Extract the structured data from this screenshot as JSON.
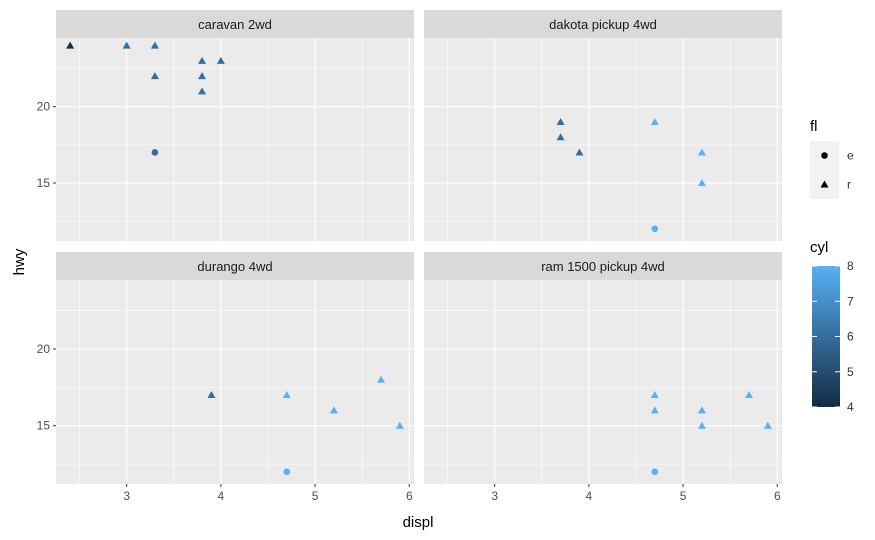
{
  "chart_data": {
    "type": "scatter",
    "xlabel": "displ",
    "ylabel": "hwy",
    "xlim": [
      2.25,
      6.05
    ],
    "ylim": [
      11.2,
      24.5
    ],
    "x_ticks": [
      3,
      4,
      5,
      6
    ],
    "y_ticks": [
      15,
      20
    ],
    "grid": true,
    "facets": [
      {
        "label": "caravan 2wd",
        "points": [
          {
            "x": 2.4,
            "y": 24,
            "fl": "r",
            "cyl": 4
          },
          {
            "x": 3.0,
            "y": 24,
            "fl": "r",
            "cyl": 6
          },
          {
            "x": 3.3,
            "y": 24,
            "fl": "r",
            "cyl": 6
          },
          {
            "x": 3.3,
            "y": 22,
            "fl": "r",
            "cyl": 6
          },
          {
            "x": 3.3,
            "y": 17,
            "fl": "e",
            "cyl": 6
          },
          {
            "x": 3.8,
            "y": 23,
            "fl": "r",
            "cyl": 6
          },
          {
            "x": 3.8,
            "y": 22,
            "fl": "r",
            "cyl": 6
          },
          {
            "x": 3.8,
            "y": 21,
            "fl": "r",
            "cyl": 6
          },
          {
            "x": 4.0,
            "y": 23,
            "fl": "r",
            "cyl": 6
          }
        ]
      },
      {
        "label": "dakota pickup 4wd",
        "points": [
          {
            "x": 3.7,
            "y": 19,
            "fl": "r",
            "cyl": 6
          },
          {
            "x": 3.7,
            "y": 18,
            "fl": "r",
            "cyl": 6
          },
          {
            "x": 3.9,
            "y": 17,
            "fl": "r",
            "cyl": 6
          },
          {
            "x": 4.7,
            "y": 19,
            "fl": "r",
            "cyl": 8
          },
          {
            "x": 4.7,
            "y": 12,
            "fl": "e",
            "cyl": 8
          },
          {
            "x": 5.2,
            "y": 17,
            "fl": "r",
            "cyl": 8
          },
          {
            "x": 5.2,
            "y": 15,
            "fl": "r",
            "cyl": 8
          }
        ]
      },
      {
        "label": "durango 4wd",
        "points": [
          {
            "x": 3.9,
            "y": 17,
            "fl": "r",
            "cyl": 6
          },
          {
            "x": 4.7,
            "y": 17,
            "fl": "r",
            "cyl": 8
          },
          {
            "x": 4.7,
            "y": 12,
            "fl": "e",
            "cyl": 8
          },
          {
            "x": 5.2,
            "y": 16,
            "fl": "r",
            "cyl": 8
          },
          {
            "x": 5.7,
            "y": 18,
            "fl": "r",
            "cyl": 8
          },
          {
            "x": 5.9,
            "y": 15,
            "fl": "r",
            "cyl": 8
          }
        ]
      },
      {
        "label": "ram 1500 pickup 4wd",
        "points": [
          {
            "x": 4.7,
            "y": 17,
            "fl": "r",
            "cyl": 8
          },
          {
            "x": 4.7,
            "y": 16,
            "fl": "r",
            "cyl": 8
          },
          {
            "x": 4.7,
            "y": 12,
            "fl": "e",
            "cyl": 8
          },
          {
            "x": 5.2,
            "y": 16,
            "fl": "r",
            "cyl": 8
          },
          {
            "x": 5.2,
            "y": 15,
            "fl": "r",
            "cyl": 8
          },
          {
            "x": 5.7,
            "y": 17,
            "fl": "r",
            "cyl": 8
          },
          {
            "x": 5.9,
            "y": 15,
            "fl": "r",
            "cyl": 8
          }
        ]
      }
    ],
    "legend": {
      "position": "right",
      "shape": {
        "title": "fl",
        "entries": [
          {
            "key": "e",
            "shape": "circle"
          },
          {
            "key": "r",
            "shape": "triangle"
          }
        ]
      },
      "color": {
        "title": "cyl",
        "min": 4,
        "max": 8,
        "ticks": [
          4,
          5,
          6,
          7,
          8
        ],
        "low_color": "#132B43",
        "high_color": "#56B1F7"
      }
    }
  },
  "colors": {
    "panel_bg": "#EBEBEB",
    "strip_bg": "#D9D9D9",
    "grid_major": "#FFFFFF"
  }
}
